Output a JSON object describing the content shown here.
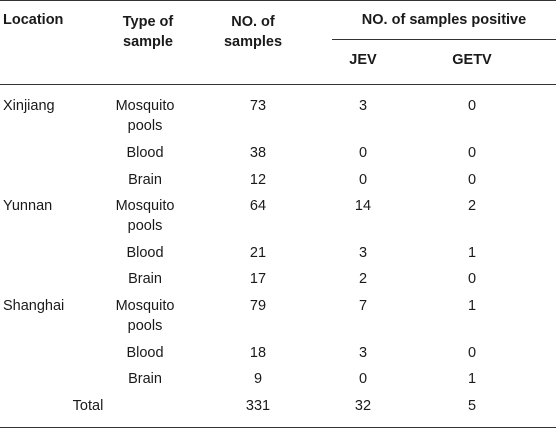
{
  "header": {
    "location": "Location",
    "type_line1": "Type of",
    "type_line2": "sample",
    "num_line1": "NO. of",
    "num_line2": "samples",
    "positive": "NO. of samples positive",
    "jev": "JEV",
    "getv": "GETV"
  },
  "rows": [
    {
      "location": "Xinjiang",
      "type_line1": "Mosquito",
      "type_line2": "pools",
      "n": "73",
      "jev": "3",
      "getv": "0"
    },
    {
      "location": "",
      "type_line1": "Blood",
      "type_line2": "",
      "n": "38",
      "jev": "0",
      "getv": "0"
    },
    {
      "location": "",
      "type_line1": "Brain",
      "type_line2": "",
      "n": "12",
      "jev": "0",
      "getv": "0"
    },
    {
      "location": "Yunnan",
      "type_line1": "Mosquito",
      "type_line2": "pools",
      "n": "64",
      "jev": "14",
      "getv": "2"
    },
    {
      "location": "",
      "type_line1": "Blood",
      "type_line2": "",
      "n": "21",
      "jev": "3",
      "getv": "1"
    },
    {
      "location": "",
      "type_line1": "Brain",
      "type_line2": "",
      "n": "17",
      "jev": "2",
      "getv": "0"
    },
    {
      "location": "Shanghai",
      "type_line1": "Mosquito",
      "type_line2": "pools",
      "n": "79",
      "jev": "7",
      "getv": "1"
    },
    {
      "location": "",
      "type_line1": "Blood",
      "type_line2": "",
      "n": "18",
      "jev": "3",
      "getv": "0"
    },
    {
      "location": "",
      "type_line1": "Brain",
      "type_line2": "",
      "n": "9",
      "jev": "0",
      "getv": "1"
    }
  ],
  "total": {
    "label": "Total",
    "n": "331",
    "jev": "32",
    "getv": "5"
  }
}
